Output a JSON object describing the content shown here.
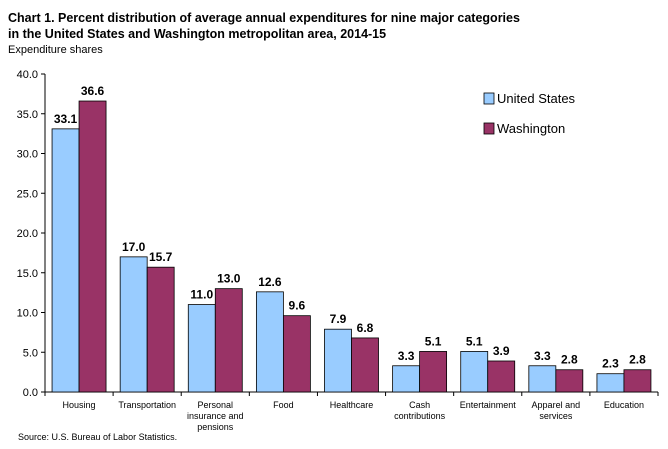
{
  "title_line1": "Chart 1. Percent distribution of average annual expenditures for nine major categories",
  "title_line2": "in the United States and Washington metropolitan area, 2014-15",
  "source": "Source: U.S. Bureau of Labor Statistics.",
  "chart_data": {
    "type": "bar",
    "ylabel": "Expenditure shares",
    "xlabel": "",
    "ylim": [
      0,
      40
    ],
    "yticks": [
      "0.0",
      "5.0",
      "10.0",
      "15.0",
      "20.0",
      "25.0",
      "30.0",
      "35.0",
      "40.0"
    ],
    "grid": false,
    "legend_position": "top-right",
    "categories": [
      [
        "Housing"
      ],
      [
        "Transportation"
      ],
      [
        "Personal",
        "insurance and",
        "pensions"
      ],
      [
        "Food"
      ],
      [
        "Healthcare"
      ],
      [
        "Cash",
        "contributions"
      ],
      [
        "Entertainment"
      ],
      [
        "Apparel and",
        "services"
      ],
      [
        "Education"
      ]
    ],
    "series": [
      {
        "name": "United States",
        "color": "#99ccff",
        "values": [
          33.1,
          17.0,
          11.0,
          12.6,
          7.9,
          3.3,
          5.1,
          3.3,
          2.3
        ],
        "labels": [
          "33.1",
          "17.0",
          "11.0",
          "12.6",
          "7.9",
          "3.3",
          "5.1",
          "3.3",
          "2.3"
        ]
      },
      {
        "name": "Washington",
        "color": "#993366",
        "values": [
          36.6,
          15.7,
          13.0,
          9.6,
          6.8,
          5.1,
          3.9,
          2.8,
          2.8
        ],
        "labels": [
          "36.6",
          "15.7",
          "13.0",
          "9.6",
          "6.8",
          "5.1",
          "3.9",
          "2.8",
          "2.8"
        ]
      }
    ]
  }
}
